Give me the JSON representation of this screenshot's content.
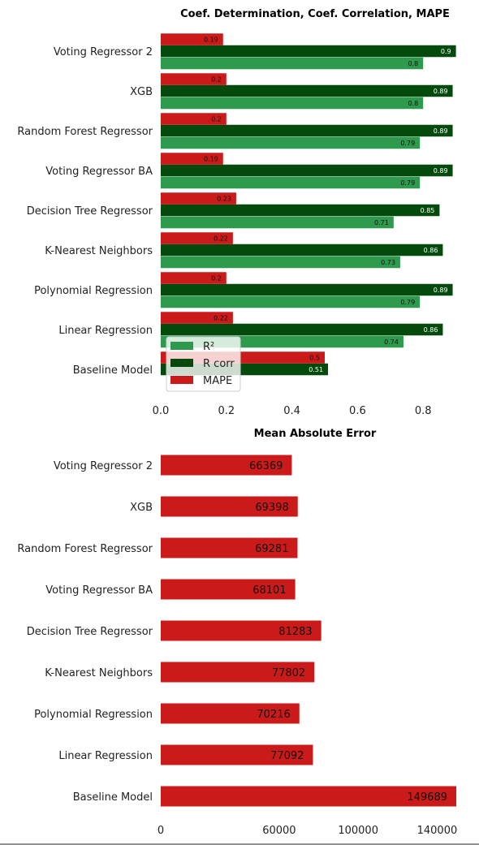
{
  "colors": {
    "r2": "#2e9a4e",
    "rcorr": "#034a0c",
    "mape": "#cb1a1a",
    "mae": "#cb1a1a"
  },
  "chart_data": [
    {
      "type": "bar",
      "orientation": "horizontal",
      "title": "Coef. Determination, Coef. Correlation, MAPE",
      "categories": [
        "Voting Regressor 2",
        "XGB",
        "Random Forest Regressor",
        "Voting Regressor BA",
        "Decision Tree Regressor",
        "K-Nearest Neighbors",
        "Polynomial Regression",
        "Linear Regression",
        "Baseline Model"
      ],
      "series": [
        {
          "name": "R²",
          "values": [
            0.8,
            0.8,
            0.79,
            0.79,
            0.71,
            0.73,
            0.79,
            0.74,
            0.0
          ],
          "labels": [
            "0.8",
            "0.8",
            "0.79",
            "0.79",
            "0.71",
            "0.73",
            "0.79",
            "0.74",
            ""
          ]
        },
        {
          "name": "R corr",
          "values": [
            0.9,
            0.89,
            0.89,
            0.89,
            0.85,
            0.86,
            0.89,
            0.86,
            0.51
          ],
          "labels": [
            "0.9",
            "0.89",
            "0.89",
            "0.89",
            "0.85",
            "0.86",
            "0.89",
            "0.86",
            "0.51"
          ]
        },
        {
          "name": "MAPE",
          "values": [
            0.19,
            0.2,
            0.2,
            0.19,
            0.23,
            0.22,
            0.2,
            0.22,
            0.5
          ],
          "labels": [
            "0.19",
            "0.2",
            "0.2",
            "0.19",
            "0.23",
            "0.22",
            "0.2",
            "0.22",
            "0.5"
          ]
        }
      ],
      "xticks": [
        "0.0",
        "0.2",
        "0.4",
        "0.6",
        "0.8"
      ],
      "xlim": [
        0,
        0.9
      ],
      "legend": "lower-left"
    },
    {
      "type": "bar",
      "orientation": "horizontal",
      "title": "Mean Absolute Error",
      "categories": [
        "Voting Regressor 2",
        "XGB",
        "Random Forest Regressor",
        "Voting Regressor BA",
        "Decision Tree Regressor",
        "K-Nearest Neighbors",
        "Polynomial Regression",
        "Linear Regression",
        "Baseline Model"
      ],
      "values": [
        66369,
        69398,
        69281,
        68101,
        81283,
        77802,
        70216,
        77092,
        149689
      ],
      "labels": [
        "66369",
        "69398",
        "69281",
        "68101",
        "81283",
        "77802",
        "70216",
        "77092",
        "149689"
      ],
      "xticks": [
        "0",
        "60000",
        "100000",
        "140000"
      ],
      "xtick_values": [
        0,
        60000,
        100000,
        140000
      ],
      "xlim": [
        0,
        149689
      ]
    }
  ]
}
